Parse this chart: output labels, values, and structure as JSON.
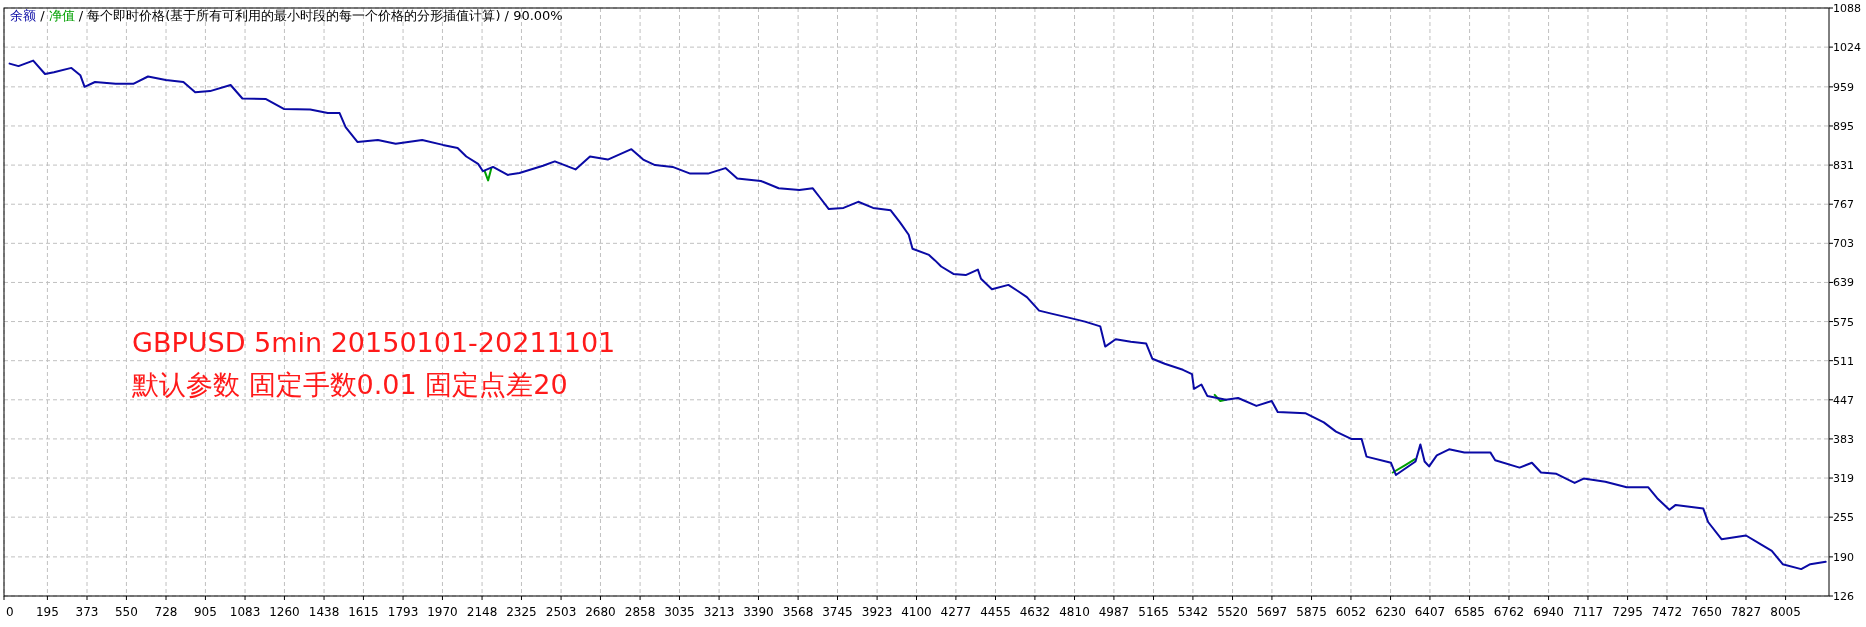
{
  "chart_data": {
    "type": "line",
    "title": "余额 / 净值 / 每个即时价格(基于所有可利用的最小时段的每一个价格的分形插值计算) / 90.00%",
    "annotations": [
      "GBPUSD 5min 20150101-20211101",
      "默认参数 固定手数0.01 固定点差20"
    ],
    "xlim": [
      0,
      8200
    ],
    "xticks": [
      0,
      195,
      373,
      550,
      728,
      905,
      1083,
      1260,
      1438,
      1615,
      1793,
      1970,
      2148,
      2325,
      2503,
      2680,
      2858,
      3035,
      3213,
      3390,
      3568,
      3745,
      3923,
      4100,
      4277,
      4455,
      4632,
      4810,
      4987,
      5165,
      5342,
      5520,
      5697,
      5875,
      6052,
      6230,
      6407,
      6585,
      6762,
      6940,
      7117,
      7295,
      7472,
      7650,
      7827,
      8005
    ],
    "ylim": [
      126,
      1088
    ],
    "yticks": [
      126,
      190,
      255,
      319,
      383,
      447,
      511,
      575,
      639,
      703,
      767,
      831,
      895,
      959,
      1024,
      1088
    ],
    "grid": true,
    "marker": "none",
    "line_style": "solid",
    "series": [
      {
        "color": "#0a0aa5",
        "x": [
          25,
          65,
          131,
          184,
          224,
          303,
          343,
          362,
          409,
          502,
          581,
          647,
          727,
          806,
          859,
          926,
          1018,
          1071,
          1177,
          1257,
          1376,
          1455,
          1508,
          1535,
          1588,
          1680,
          1760,
          1879,
          1972,
          2038,
          2077,
          2130,
          2152,
          2197,
          2263,
          2316,
          2422,
          2475,
          2568,
          2633,
          2713,
          2819,
          2872,
          2925,
          3004,
          3083,
          3163,
          3242,
          3295,
          3401,
          3481,
          3574,
          3634,
          3666,
          3706,
          3772,
          3838,
          3905,
          3984,
          4024,
          4032,
          4065,
          4082,
          4156,
          4183,
          4211,
          4266,
          4321,
          4376,
          4390,
          4439,
          4513,
          4555,
          4596,
          4651,
          4706,
          4788,
          4857,
          4926,
          4948,
          4995,
          5063,
          5132,
          5160,
          5215,
          5297,
          5338,
          5347,
          5380,
          5407,
          5490,
          5545,
          5627,
          5696,
          5723,
          5847,
          5930,
          5985,
          6053,
          6100,
          6122,
          6232,
          6254,
          6342,
          6364,
          6383,
          6403,
          6438,
          6493,
          6562,
          6678,
          6700,
          6810,
          6865,
          6906,
          6975,
          7057,
          7098,
          7195,
          7291,
          7387,
          7428,
          7483,
          7511,
          7635,
          7657,
          7717,
          7827,
          7896,
          7943,
          7992,
          8075,
          8116,
          8185
        ],
        "values": [
          997,
          993,
          1002,
          980,
          983,
          990,
          978,
          959,
          967,
          964,
          964,
          976,
          970,
          967,
          950,
          952,
          962,
          940,
          939,
          923,
          922,
          916,
          916,
          893,
          869,
          872,
          866,
          872,
          864,
          859,
          845,
          833,
          821,
          828,
          815,
          818,
          830,
          837,
          824,
          845,
          840,
          857,
          840,
          831,
          828,
          817,
          817,
          826,
          809,
          805,
          793,
          790,
          793,
          778,
          759,
          761,
          771,
          761,
          757,
          738,
          734,
          717,
          694,
          684,
          675,
          665,
          653,
          651,
          660,
          645,
          628,
          635,
          625,
          615,
          593,
          588,
          581,
          575,
          567,
          534,
          546,
          542,
          539,
          514,
          506,
          496,
          489,
          465,
          472,
          453,
          447,
          450,
          437,
          445,
          427,
          425,
          410,
          395,
          383,
          383,
          354,
          344,
          324,
          346,
          374,
          346,
          338,
          356,
          366,
          361,
          361,
          348,
          336,
          344,
          328,
          326,
          311,
          318,
          313,
          304,
          304,
          286,
          267,
          275,
          269,
          247,
          219,
          225,
          210,
          200,
          178,
          170,
          178,
          182
        ]
      },
      {
        "color": "#00a000",
        "x": [
          2160,
          2175,
          2190,
          2200,
          5440,
          5465,
          5490,
          5500,
          6240,
          6300,
          6340
        ],
        "values": [
          821,
          806,
          826,
          null,
          455,
          445,
          447,
          null,
          328,
          341,
          350
        ]
      }
    ]
  }
}
